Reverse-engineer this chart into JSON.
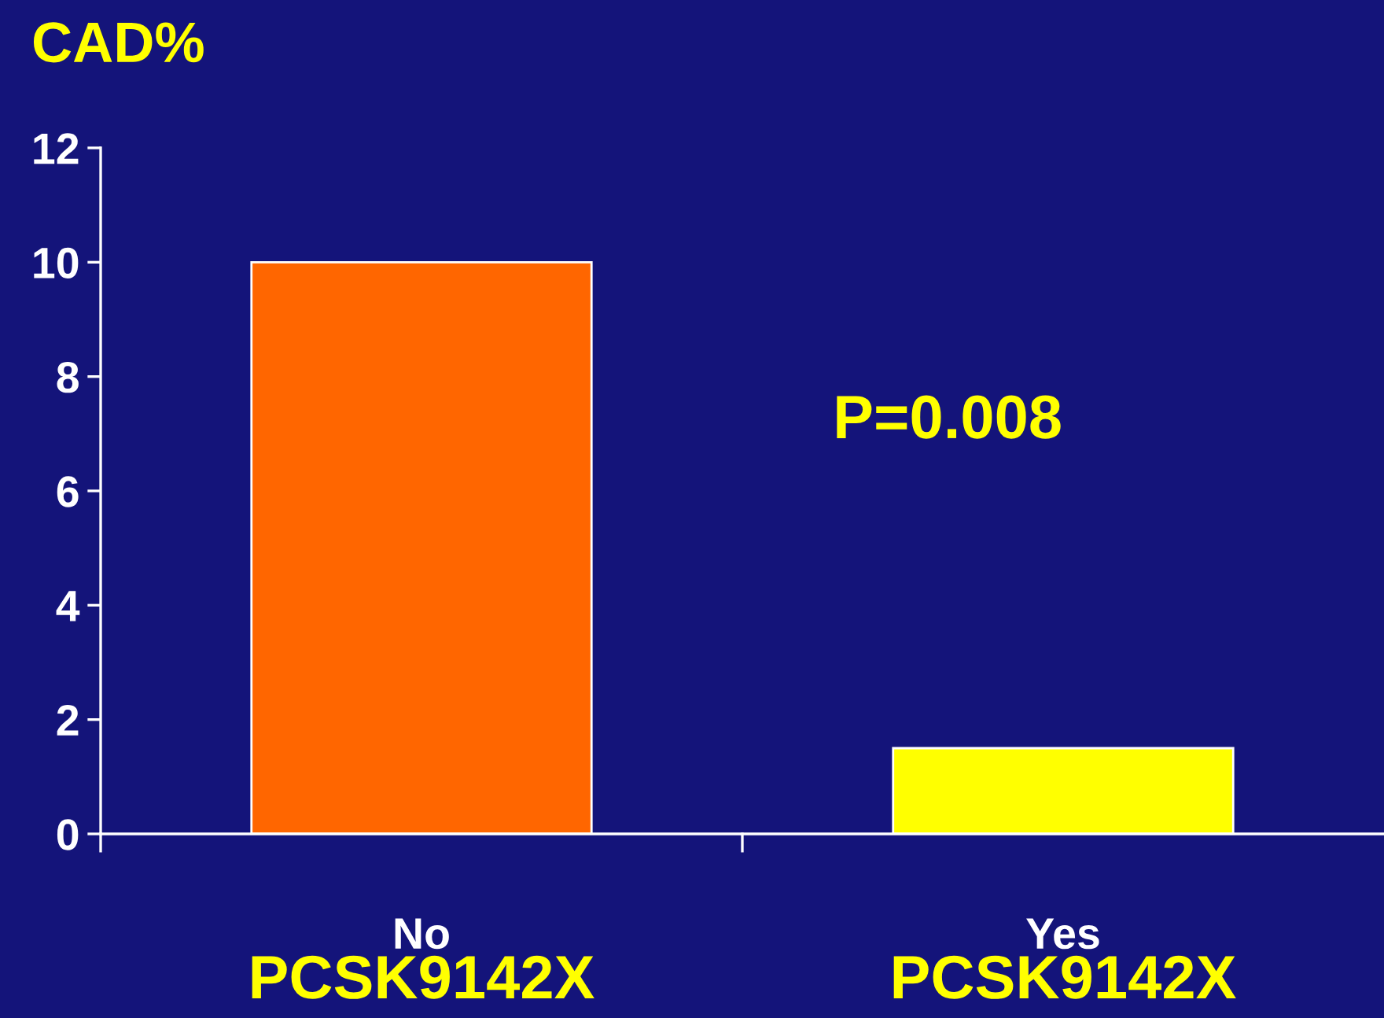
{
  "chart_data": {
    "type": "bar",
    "title": "CAD%",
    "categories": [
      "No",
      "Yes"
    ],
    "values": [
      10,
      1.5
    ],
    "colors": [
      "#ff6600",
      "#ffff00"
    ],
    "ylim": [
      0,
      12
    ],
    "yticks": [
      0,
      2,
      4,
      6,
      8,
      10,
      12
    ],
    "grid": false,
    "annotations": [
      "P=0.008",
      "PCSK9142X",
      "PCSK9142X"
    ]
  }
}
